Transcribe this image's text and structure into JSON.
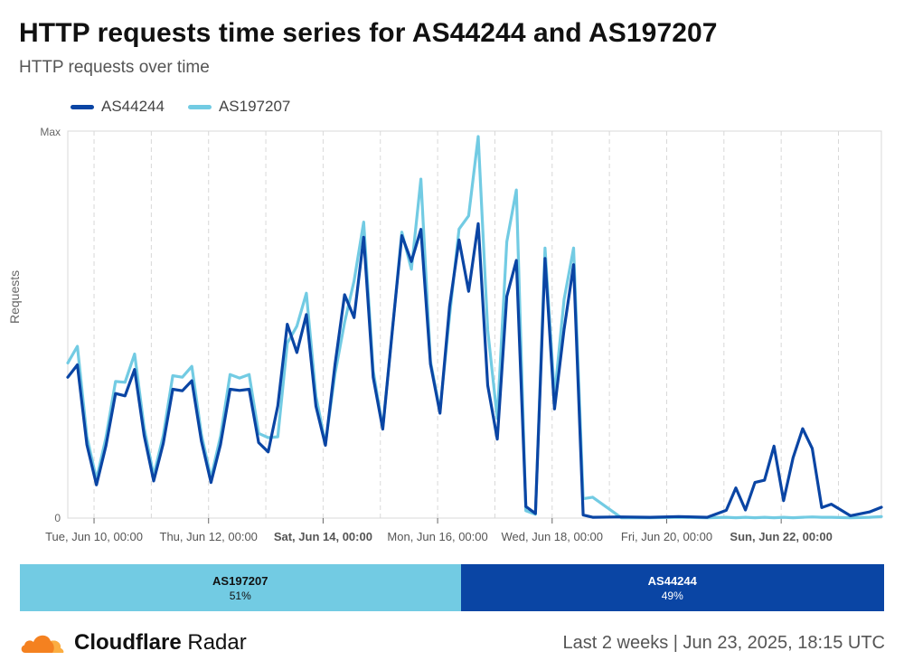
{
  "header": {
    "title": "HTTP requests time series for AS44244 and AS197207",
    "subtitle": "HTTP requests over time"
  },
  "colors": {
    "as44244": "#0a45a4",
    "as197207": "#72cbe3",
    "grid": "#d8d8d8",
    "axis": "#666666"
  },
  "legend": [
    {
      "label": "AS44244",
      "color": "#0a45a4"
    },
    {
      "label": "AS197207",
      "color": "#72cbe3"
    }
  ],
  "chart_data": {
    "type": "line",
    "ylabel": "Requests",
    "y_ticks": [
      "Max",
      "0"
    ],
    "ylim": [
      0,
      100
    ],
    "grid": true,
    "legend_position": "top-left",
    "x_range": [
      "2025-06-09 13:00",
      "2025-06-23 18:00"
    ],
    "x_ticks": [
      {
        "label": "Tue, Jun 10, 00:00",
        "t": "2025-06-10 00:00",
        "bold": false
      },
      {
        "label": "Thu, Jun 12, 00:00",
        "t": "2025-06-12 00:00",
        "bold": false
      },
      {
        "label": "Sat, Jun 14, 00:00",
        "t": "2025-06-14 00:00",
        "bold": true
      },
      {
        "label": "Mon, Jun 16, 00:00",
        "t": "2025-06-16 00:00",
        "bold": false
      },
      {
        "label": "Wed, Jun 18, 00:00",
        "t": "2025-06-18 00:00",
        "bold": false
      },
      {
        "label": "Fri, Jun 20, 00:00",
        "t": "2025-06-20 00:00",
        "bold": false
      },
      {
        "label": "Sun, Jun 22, 00:00",
        "t": "2025-06-22 00:00",
        "bold": true
      }
    ],
    "series": [
      {
        "name": "AS44244",
        "color": "#0a45a4",
        "points": [
          [
            "2025-06-09 13:00",
            36.4
          ],
          [
            "2025-06-09 17:00",
            39.6
          ],
          [
            "2025-06-09 21:00",
            19.0
          ],
          [
            "2025-06-10 01:00",
            8.6
          ],
          [
            "2025-06-10 05:00",
            18.7
          ],
          [
            "2025-06-10 09:00",
            32.2
          ],
          [
            "2025-06-10 13:00",
            31.6
          ],
          [
            "2025-06-10 17:00",
            38.4
          ],
          [
            "2025-06-10 21:00",
            21.3
          ],
          [
            "2025-06-11 01:00",
            9.6
          ],
          [
            "2025-06-11 05:00",
            19.3
          ],
          [
            "2025-06-11 09:00",
            33.3
          ],
          [
            "2025-06-11 13:00",
            32.9
          ],
          [
            "2025-06-11 17:00",
            35.5
          ],
          [
            "2025-06-11 21:00",
            19.9
          ],
          [
            "2025-06-12 01:00",
            9.2
          ],
          [
            "2025-06-12 05:00",
            19.0
          ],
          [
            "2025-06-12 09:00",
            33.3
          ],
          [
            "2025-06-12 13:00",
            33.0
          ],
          [
            "2025-06-12 17:00",
            33.3
          ],
          [
            "2025-06-12 21:00",
            19.5
          ],
          [
            "2025-06-13 01:00",
            17.1
          ],
          [
            "2025-06-13 05:00",
            29.0
          ],
          [
            "2025-06-13 09:00",
            50.1
          ],
          [
            "2025-06-13 13:00",
            42.8
          ],
          [
            "2025-06-13 17:00",
            52.6
          ],
          [
            "2025-06-13 21:00",
            28.9
          ],
          [
            "2025-06-14 01:00",
            18.8
          ],
          [
            "2025-06-14 05:00",
            39.7
          ],
          [
            "2025-06-14 09:00",
            57.7
          ],
          [
            "2025-06-14 13:00",
            51.8
          ],
          [
            "2025-06-14 17:00",
            72.6
          ],
          [
            "2025-06-14 21:00",
            36.4
          ],
          [
            "2025-06-15 01:00",
            23.0
          ],
          [
            "2025-06-15 05:00",
            48.3
          ],
          [
            "2025-06-15 09:00",
            73.0
          ],
          [
            "2025-06-15 13:00",
            66.3
          ],
          [
            "2025-06-15 17:00",
            74.6
          ],
          [
            "2025-06-15 21:00",
            39.8
          ],
          [
            "2025-06-16 01:00",
            27.1
          ],
          [
            "2025-06-16 05:00",
            54.7
          ],
          [
            "2025-06-16 09:00",
            71.9
          ],
          [
            "2025-06-16 13:00",
            58.6
          ],
          [
            "2025-06-16 17:00",
            76.1
          ],
          [
            "2025-06-16 21:00",
            34.3
          ],
          [
            "2025-06-17 01:00",
            20.4
          ],
          [
            "2025-06-17 05:00",
            57.3
          ],
          [
            "2025-06-17 09:00",
            66.6
          ],
          [
            "2025-06-17 13:00",
            3.0
          ],
          [
            "2025-06-17 17:00",
            1.2
          ],
          [
            "2025-06-17 21:00",
            67.1
          ],
          [
            "2025-06-18 01:00",
            28.2
          ],
          [
            "2025-06-18 05:00",
            48.8
          ],
          [
            "2025-06-18 09:00",
            65.5
          ],
          [
            "2025-06-18 13:00",
            0.8
          ],
          [
            "2025-06-18 17:00",
            0.2
          ],
          [
            "2025-06-19 05:00",
            0.3
          ],
          [
            "2025-06-19 17:00",
            0.2
          ],
          [
            "2025-06-20 05:00",
            0.4
          ],
          [
            "2025-06-20 17:00",
            0.2
          ],
          [
            "2025-06-21 01:00",
            2.0
          ],
          [
            "2025-06-21 05:00",
            7.8
          ],
          [
            "2025-06-21 09:00",
            2.1
          ],
          [
            "2025-06-21 13:00",
            9.2
          ],
          [
            "2025-06-21 17:00",
            9.8
          ],
          [
            "2025-06-21 21:00",
            18.6
          ],
          [
            "2025-06-22 01:00",
            4.5
          ],
          [
            "2025-06-22 05:00",
            15.6
          ],
          [
            "2025-06-22 09:00",
            23.1
          ],
          [
            "2025-06-22 13:00",
            18.0
          ],
          [
            "2025-06-22 17:00",
            2.7
          ],
          [
            "2025-06-22 21:00",
            3.6
          ],
          [
            "2025-06-23 05:00",
            0.6
          ],
          [
            "2025-06-23 13:00",
            1.6
          ],
          [
            "2025-06-23 18:00",
            2.8
          ]
        ]
      },
      {
        "name": "AS197207",
        "color": "#72cbe3",
        "points": [
          [
            "2025-06-09 13:00",
            40.1
          ],
          [
            "2025-06-09 17:00",
            44.4
          ],
          [
            "2025-06-09 21:00",
            21.1
          ],
          [
            "2025-06-10 01:00",
            10.0
          ],
          [
            "2025-06-10 05:00",
            20.8
          ],
          [
            "2025-06-10 09:00",
            35.3
          ],
          [
            "2025-06-10 13:00",
            35.1
          ],
          [
            "2025-06-10 17:00",
            42.4
          ],
          [
            "2025-06-10 21:00",
            23.3
          ],
          [
            "2025-06-11 01:00",
            11.0
          ],
          [
            "2025-06-11 05:00",
            21.3
          ],
          [
            "2025-06-11 09:00",
            36.8
          ],
          [
            "2025-06-11 13:00",
            36.4
          ],
          [
            "2025-06-11 17:00",
            39.2
          ],
          [
            "2025-06-11 21:00",
            21.6
          ],
          [
            "2025-06-12 01:00",
            10.4
          ],
          [
            "2025-06-12 05:00",
            21.1
          ],
          [
            "2025-06-12 09:00",
            37.1
          ],
          [
            "2025-06-12 13:00",
            36.2
          ],
          [
            "2025-06-12 17:00",
            37.1
          ],
          [
            "2025-06-12 21:00",
            21.9
          ],
          [
            "2025-06-13 01:00",
            20.8
          ],
          [
            "2025-06-13 05:00",
            21.0
          ],
          [
            "2025-06-13 09:00",
            45.2
          ],
          [
            "2025-06-13 13:00",
            49.6
          ],
          [
            "2025-06-13 17:00",
            58.1
          ],
          [
            "2025-06-13 21:00",
            31.5
          ],
          [
            "2025-06-14 01:00",
            19.2
          ],
          [
            "2025-06-14 05:00",
            37.3
          ],
          [
            "2025-06-14 09:00",
            50.6
          ],
          [
            "2025-06-14 13:00",
            61.3
          ],
          [
            "2025-06-14 17:00",
            76.5
          ],
          [
            "2025-06-14 21:00",
            38.1
          ],
          [
            "2025-06-15 01:00",
            23.3
          ],
          [
            "2025-06-15 05:00",
            48.1
          ],
          [
            "2025-06-15 09:00",
            73.9
          ],
          [
            "2025-06-15 13:00",
            64.3
          ],
          [
            "2025-06-15 17:00",
            87.6
          ],
          [
            "2025-06-15 21:00",
            40.5
          ],
          [
            "2025-06-16 01:00",
            27.7
          ],
          [
            "2025-06-16 05:00",
            52.2
          ],
          [
            "2025-06-16 09:00",
            74.7
          ],
          [
            "2025-06-16 13:00",
            78.1
          ],
          [
            "2025-06-16 17:00",
            98.6
          ],
          [
            "2025-06-16 21:00",
            48.6
          ],
          [
            "2025-06-17 01:00",
            25.7
          ],
          [
            "2025-06-17 05:00",
            71.4
          ],
          [
            "2025-06-17 09:00",
            84.8
          ],
          [
            "2025-06-17 13:00",
            1.9
          ],
          [
            "2025-06-17 17:00",
            1.0
          ],
          [
            "2025-06-17 21:00",
            69.8
          ],
          [
            "2025-06-18 01:00",
            31.4
          ],
          [
            "2025-06-18 05:00",
            56.5
          ],
          [
            "2025-06-18 09:00",
            69.8
          ],
          [
            "2025-06-18 13:00",
            5.0
          ],
          [
            "2025-06-18 17:00",
            5.4
          ],
          [
            "2025-06-19 05:00",
            0.1
          ],
          [
            "2025-06-19 17:00",
            0.1
          ],
          [
            "2025-06-20 05:00",
            0.2
          ],
          [
            "2025-06-20 17:00",
            0.1
          ],
          [
            "2025-06-21 01:00",
            0.2
          ],
          [
            "2025-06-21 05:00",
            0.1
          ],
          [
            "2025-06-21 09:00",
            0.2
          ],
          [
            "2025-06-21 13:00",
            0.1
          ],
          [
            "2025-06-21 17:00",
            0.2
          ],
          [
            "2025-06-21 21:00",
            0.1
          ],
          [
            "2025-06-22 01:00",
            0.2
          ],
          [
            "2025-06-22 05:00",
            0.1
          ],
          [
            "2025-06-22 09:00",
            0.2
          ],
          [
            "2025-06-22 13:00",
            0.3
          ],
          [
            "2025-06-22 17:00",
            0.2
          ],
          [
            "2025-06-22 21:00",
            0.2
          ],
          [
            "2025-06-23 05:00",
            0.1
          ],
          [
            "2025-06-23 13:00",
            0.2
          ],
          [
            "2025-06-23 18:00",
            0.4
          ]
        ]
      }
    ]
  },
  "share": [
    {
      "name": "AS197207",
      "pct": "51%",
      "value": 51,
      "color": "#72cbe3",
      "text_color": "#111111"
    },
    {
      "name": "AS44244",
      "pct": "49%",
      "value": 49,
      "color": "#0a45a4",
      "text_color": "#ffffff"
    }
  ],
  "footer": {
    "brand_bold": "Cloudflare",
    "brand_rest": " Radar",
    "timeframe": "Last 2 weeks | Jun 23, 2025, 18:15 UTC"
  }
}
